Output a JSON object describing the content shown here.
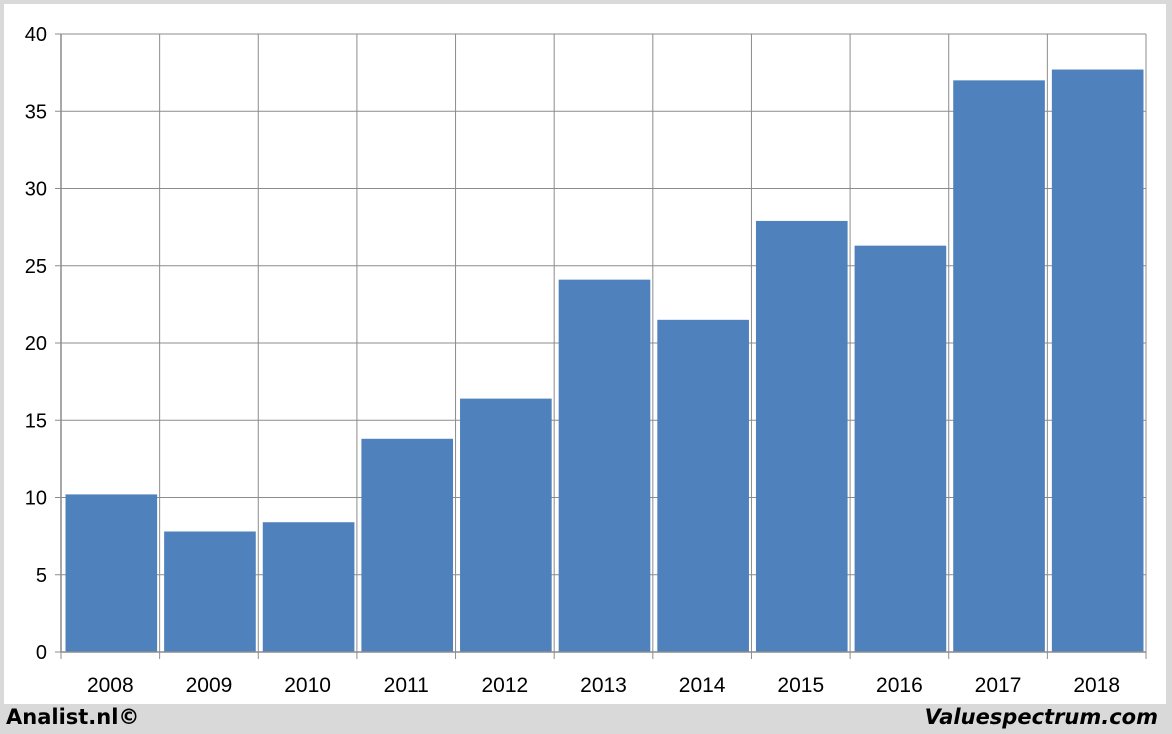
{
  "chart_data": {
    "type": "bar",
    "categories": [
      "2008",
      "2009",
      "2010",
      "2011",
      "2012",
      "2013",
      "2014",
      "2015",
      "2016",
      "2017",
      "2018"
    ],
    "values": [
      10.2,
      7.8,
      8.4,
      13.8,
      16.4,
      24.1,
      21.5,
      27.9,
      26.3,
      37.0,
      37.7
    ],
    "yticks": [
      0,
      5,
      10,
      15,
      20,
      25,
      30,
      35,
      40
    ],
    "ylim": [
      0,
      40
    ],
    "grid": true,
    "bar_color": "#4f81bd",
    "grid_color": "#8c8c8c"
  },
  "footer": {
    "left_text": "Analist.nl©",
    "right_text": "Valuespectrum.com"
  }
}
